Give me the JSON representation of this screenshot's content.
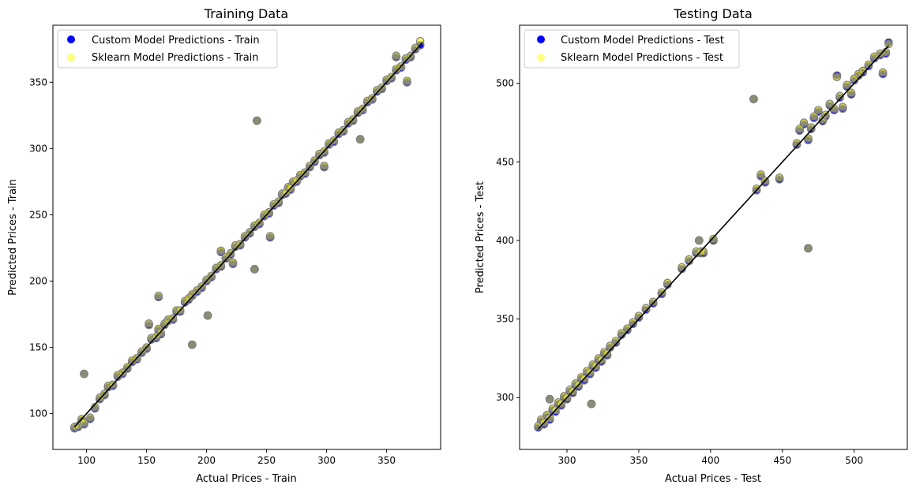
{
  "chart_data": [
    {
      "type": "scatter",
      "title": "Training Data",
      "xlabel": "Actual Prices - Train",
      "ylabel": "Predicted Prices - Train",
      "xlim": [
        72,
        395
      ],
      "ylim": [
        73,
        393
      ],
      "xticks": [
        100,
        150,
        200,
        250,
        300,
        350
      ],
      "yticks": [
        100,
        150,
        200,
        250,
        300,
        350
      ],
      "grid": false,
      "legend_position": "top-left",
      "series": [
        {
          "name": "Custom Model Predictions - Train",
          "color": "#0000ff",
          "x": [
            90,
            93,
            96,
            98,
            103,
            107,
            111,
            115,
            118,
            122,
            126,
            130,
            134,
            138,
            142,
            146,
            150,
            154,
            158,
            160,
            162,
            165,
            168,
            172,
            175,
            178,
            182,
            185,
            188,
            192,
            196,
            200,
            204,
            208,
            212,
            216,
            220,
            224,
            228,
            232,
            236,
            240,
            244,
            248,
            252,
            256,
            260,
            263,
            266,
            268,
            270,
            272,
            275,
            278,
            282,
            286,
            290,
            294,
            298,
            302,
            306,
            310,
            314,
            318,
            322,
            326,
            330,
            334,
            338,
            342,
            346,
            350,
            354,
            358,
            362,
            366,
            370,
            374,
            378,
            98,
            242,
            253,
            240,
            188,
            201,
            152,
            160,
            328,
            367,
            212,
            222,
            358,
            298
          ],
          "y": [
            89,
            90,
            95,
            92,
            96,
            104,
            111,
            114,
            120,
            121,
            128,
            130,
            134,
            139,
            141,
            146,
            149,
            156,
            157,
            163,
            160,
            167,
            170,
            171,
            177,
            177,
            184,
            186,
            189,
            192,
            195,
            200,
            203,
            209,
            211,
            217,
            220,
            226,
            227,
            233,
            236,
            241,
            243,
            249,
            251,
            257,
            259,
            265,
            266,
            270,
            269,
            274,
            275,
            279,
            281,
            286,
            290,
            295,
            297,
            303,
            305,
            311,
            313,
            319,
            321,
            327,
            329,
            335,
            337,
            343,
            345,
            351,
            353,
            359,
            361,
            367,
            369,
            375,
            378,
            130,
            321,
            233,
            209,
            152,
            174,
            167,
            188,
            307,
            350,
            222,
            213,
            369,
            286
          ]
        },
        {
          "name": "Sklearn Model Predictions - Train",
          "color": "#ffff00",
          "x": [
            90,
            93,
            96,
            98,
            103,
            107,
            111,
            115,
            118,
            122,
            126,
            130,
            134,
            138,
            142,
            146,
            150,
            154,
            158,
            160,
            162,
            165,
            168,
            172,
            175,
            178,
            182,
            185,
            188,
            192,
            196,
            200,
            204,
            208,
            212,
            216,
            220,
            224,
            228,
            232,
            236,
            240,
            244,
            248,
            252,
            256,
            260,
            263,
            266,
            268,
            270,
            272,
            275,
            278,
            282,
            286,
            290,
            294,
            298,
            302,
            306,
            310,
            314,
            318,
            322,
            326,
            330,
            334,
            338,
            342,
            346,
            350,
            354,
            358,
            362,
            366,
            370,
            374,
            378,
            98,
            242,
            253,
            240,
            188,
            201,
            152,
            160,
            328,
            367,
            212,
            222,
            358,
            298
          ],
          "y": [
            90,
            91,
            96,
            93,
            97,
            105,
            112,
            115,
            121,
            122,
            129,
            131,
            135,
            140,
            142,
            147,
            150,
            157,
            158,
            164,
            161,
            168,
            171,
            172,
            178,
            178,
            185,
            187,
            190,
            193,
            196,
            201,
            204,
            210,
            212,
            218,
            221,
            227,
            228,
            234,
            237,
            242,
            244,
            250,
            252,
            258,
            260,
            266,
            267,
            271,
            270,
            275,
            276,
            280,
            282,
            287,
            291,
            296,
            298,
            304,
            306,
            312,
            314,
            320,
            322,
            328,
            330,
            336,
            338,
            344,
            346,
            352,
            354,
            360,
            362,
            368,
            370,
            376,
            381,
            130,
            321,
            234,
            209,
            152,
            174,
            168,
            189,
            307,
            351,
            223,
            214,
            370,
            287
          ]
        }
      ],
      "reference_line": {
        "x": [
          90,
          380
        ],
        "y": [
          90,
          380
        ]
      }
    },
    {
      "type": "scatter",
      "title": "Testing Data",
      "xlabel": "Actual Prices - Test",
      "ylabel": "Predicted Prices - Test",
      "xlim": [
        267,
        537
      ],
      "ylim": [
        267,
        537
      ],
      "xticks": [
        300,
        350,
        400,
        450,
        500
      ],
      "yticks": [
        300,
        350,
        400,
        450,
        500
      ],
      "grid": false,
      "legend_position": "top-left",
      "series": [
        {
          "name": "Custom Model Predictions - Test",
          "color": "#0000ff",
          "x": [
            280,
            282,
            284,
            286,
            288,
            290,
            292,
            294,
            296,
            298,
            300,
            302,
            304,
            306,
            308,
            310,
            312,
            314,
            316,
            318,
            320,
            322,
            324,
            326,
            328,
            330,
            334,
            338,
            342,
            346,
            350,
            355,
            360,
            366,
            370,
            380,
            385,
            390,
            393,
            395,
            402,
            430,
            432,
            435,
            438,
            448,
            460,
            462,
            465,
            468,
            470,
            472,
            475,
            478,
            480,
            483,
            486,
            488,
            490,
            492,
            495,
            498,
            500,
            503,
            506,
            510,
            514,
            518,
            522,
            524,
            288,
            317,
            468,
            392,
            520
          ],
          "y": [
            281,
            285,
            283,
            288,
            286,
            292,
            291,
            296,
            295,
            300,
            299,
            304,
            303,
            308,
            307,
            312,
            311,
            316,
            315,
            320,
            319,
            324,
            323,
            328,
            327,
            332,
            335,
            340,
            343,
            347,
            351,
            356,
            360,
            366,
            372,
            382,
            387,
            392,
            392,
            392,
            400,
            490,
            432,
            441,
            437,
            439,
            461,
            470,
            474,
            464,
            471,
            478,
            482,
            476,
            479,
            486,
            483,
            505,
            491,
            484,
            498,
            493,
            502,
            505,
            507,
            511,
            516,
            518,
            519,
            526,
            299,
            296,
            395,
            400,
            506
          ]
        },
        {
          "name": "Sklearn Model Predictions - Test",
          "color": "#ffff00",
          "x": [
            280,
            282,
            284,
            286,
            288,
            290,
            292,
            294,
            296,
            298,
            300,
            302,
            304,
            306,
            308,
            310,
            312,
            314,
            316,
            318,
            320,
            322,
            324,
            326,
            328,
            330,
            334,
            338,
            342,
            346,
            350,
            355,
            360,
            366,
            370,
            380,
            385,
            390,
            393,
            395,
            402,
            430,
            432,
            435,
            438,
            448,
            460,
            462,
            465,
            468,
            470,
            472,
            475,
            478,
            480,
            483,
            486,
            488,
            490,
            492,
            495,
            498,
            500,
            503,
            506,
            510,
            514,
            518,
            522,
            524,
            288,
            317,
            468,
            392,
            520
          ],
          "y": [
            282,
            286,
            284,
            289,
            287,
            293,
            292,
            297,
            296,
            301,
            300,
            305,
            304,
            309,
            308,
            313,
            312,
            317,
            316,
            321,
            320,
            325,
            324,
            329,
            328,
            333,
            336,
            341,
            344,
            348,
            352,
            357,
            361,
            367,
            373,
            383,
            388,
            393,
            393,
            393,
            401,
            490,
            433,
            442,
            438,
            440,
            462,
            471,
            475,
            465,
            472,
            479,
            483,
            477,
            480,
            487,
            484,
            504,
            492,
            485,
            499,
            494,
            503,
            506,
            508,
            512,
            517,
            519,
            520,
            525,
            299,
            296,
            395,
            400,
            507
          ]
        }
      ],
      "reference_line": {
        "x": [
          280,
          524
        ],
        "y": [
          280,
          524
        ]
      }
    }
  ]
}
